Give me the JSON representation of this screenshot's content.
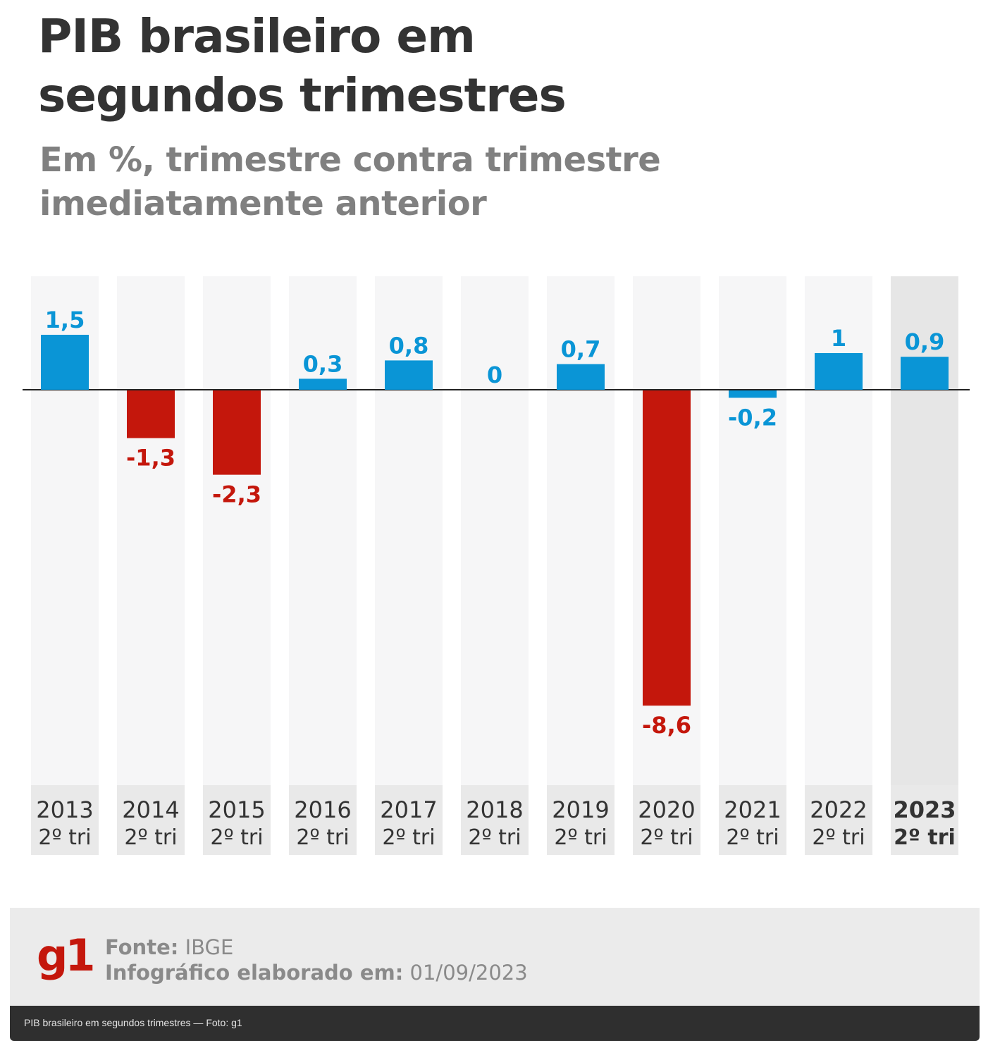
{
  "header": {
    "title_line1": "PIB brasileiro em",
    "title_line2": "segundos trimestres",
    "subtitle_line1": "Em %, trimestre contra trimestre",
    "subtitle_line2": "imediatamente anterior"
  },
  "chart_data": {
    "type": "bar",
    "title": "PIB brasileiro em segundos trimestres",
    "subtitle": "Em %, trimestre contra trimestre imediatamente anterior",
    "categories": [
      [
        "2013",
        "2º tri"
      ],
      [
        "2014",
        "2º tri"
      ],
      [
        "2015",
        "2º tri"
      ],
      [
        "2016",
        "2º tri"
      ],
      [
        "2017",
        "2º tri"
      ],
      [
        "2018",
        "2º tri"
      ],
      [
        "2019",
        "2º tri"
      ],
      [
        "2020",
        "2º tri"
      ],
      [
        "2021",
        "2º tri"
      ],
      [
        "2022",
        "2º tri"
      ],
      [
        "2023",
        "2º tri"
      ]
    ],
    "values": [
      1.5,
      -1.3,
      -2.3,
      0.3,
      0.8,
      0,
      0.7,
      -8.6,
      -0.2,
      1,
      0.9
    ],
    "value_labels": [
      "1,5",
      "-1,3",
      "-2,3",
      "0,3",
      "0,8",
      "0",
      "0,7",
      "-8,6",
      "-0,2",
      "1",
      "0,9"
    ],
    "highlight_index": 10,
    "ylim": [
      -8.6,
      1.5
    ],
    "grid": false,
    "legend": "none",
    "colors": {
      "positive": "#0a95d6",
      "negative": "#c4170c",
      "column_bg": "#f6f6f7",
      "column_bg_highlight": "#e6e6e6",
      "label_bg": "#e9e9e9",
      "axis": "#222222",
      "category_text": "#333333"
    }
  },
  "footer": {
    "logo": "g1",
    "source_label": "Fonte:",
    "source_value": "IBGE",
    "date_label": "Infográfico elaborado em:",
    "date_value": "01/09/2023"
  },
  "caption": "PIB brasileiro em segundos trimestres — Foto: g1"
}
